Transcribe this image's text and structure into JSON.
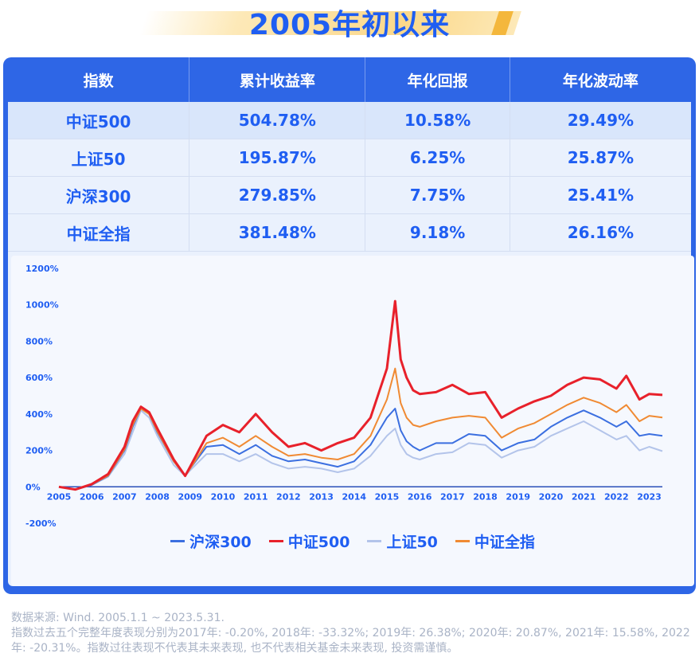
{
  "title": "2005年初以来",
  "table": {
    "headers": [
      "指数",
      "累计收益率",
      "年化回报",
      "年化波动率"
    ],
    "rows": [
      [
        "中证500",
        "504.78%",
        "10.58%",
        "29.49%"
      ],
      [
        "上证50",
        "195.87%",
        "6.25%",
        "25.87%"
      ],
      [
        "沪深300",
        "279.85%",
        "7.75%",
        "25.41%"
      ],
      [
        "中证全指",
        "381.48%",
        "9.18%",
        "26.16%"
      ]
    ]
  },
  "chart_data": {
    "type": "line",
    "x": [
      2005,
      2005.5,
      2006,
      2006.5,
      2007,
      2007.25,
      2007.5,
      2007.75,
      2008,
      2008.5,
      2008.85,
      2009,
      2009.5,
      2010,
      2010.5,
      2011,
      2011.5,
      2012,
      2012.5,
      2013,
      2013.5,
      2014,
      2014.5,
      2015,
      2015.25,
      2015.42,
      2015.6,
      2015.8,
      2016,
      2016.5,
      2017,
      2017.5,
      2018,
      2018.5,
      2019,
      2019.5,
      2020,
      2020.5,
      2021,
      2021.5,
      2022,
      2022.3,
      2022.7,
      2023,
      2023.4
    ],
    "xticks": [
      "2005",
      "2006",
      "2007",
      "2008",
      "2009",
      "2010",
      "2011",
      "2012",
      "2013",
      "2014",
      "2015",
      "2016",
      "2017",
      "2018",
      "2019",
      "2020",
      "2021",
      "2022",
      "2023"
    ],
    "yticks": [
      "1200%",
      "1000%",
      "800%",
      "600%",
      "400%",
      "200%",
      "0%",
      "-200%"
    ],
    "ylim": [
      -200,
      1200
    ],
    "xlim": [
      2005,
      2023.4
    ],
    "series": [
      {
        "name": "沪深300",
        "color": "#3b6fe0",
        "values": [
          0,
          -15,
          10,
          60,
          200,
          330,
          430,
          400,
          300,
          140,
          60,
          100,
          220,
          230,
          180,
          230,
          170,
          140,
          150,
          130,
          110,
          140,
          230,
          380,
          430,
          310,
          250,
          220,
          200,
          240,
          240,
          290,
          280,
          200,
          240,
          260,
          330,
          380,
          420,
          380,
          330,
          360,
          280,
          290,
          280
        ]
      },
      {
        "name": "中证500",
        "color": "#e8212b",
        "values": [
          0,
          -15,
          15,
          70,
          220,
          360,
          440,
          410,
          320,
          150,
          60,
          110,
          280,
          340,
          300,
          400,
          300,
          220,
          240,
          200,
          240,
          270,
          380,
          650,
          1020,
          700,
          600,
          530,
          510,
          520,
          560,
          510,
          520,
          380,
          430,
          470,
          500,
          560,
          600,
          590,
          540,
          610,
          480,
          510,
          505
        ]
      },
      {
        "name": "上证50",
        "color": "#b3c4ea",
        "values": [
          0,
          -15,
          10,
          55,
          180,
          300,
          420,
          380,
          280,
          120,
          60,
          90,
          180,
          180,
          140,
          180,
          130,
          100,
          110,
          100,
          80,
          100,
          170,
          280,
          320,
          230,
          180,
          160,
          150,
          180,
          190,
          240,
          230,
          160,
          200,
          220,
          280,
          320,
          360,
          310,
          260,
          280,
          200,
          220,
          196
        ]
      },
      {
        "name": "中证全指",
        "color": "#f08a33",
        "values": [
          0,
          -15,
          12,
          62,
          205,
          340,
          430,
          400,
          305,
          140,
          60,
          100,
          240,
          270,
          220,
          280,
          220,
          170,
          180,
          160,
          150,
          180,
          280,
          480,
          650,
          460,
          380,
          340,
          330,
          360,
          380,
          390,
          380,
          270,
          320,
          350,
          400,
          450,
          490,
          460,
          410,
          450,
          360,
          390,
          381
        ]
      }
    ]
  },
  "footer": {
    "line1": "数据来源: Wind. 2005.1.1 ~ 2023.5.31.",
    "line2": "指数过去五个完整年度表现分别为2017年: -0.20%, 2018年: -33.32%; 2019年: 26.38%; 2020年: 20.87%, 2021年: 15.58%, 2022年: -20.31%。指数过往表现不代表其未来表现, 也不代表相关基金未来表现, 投资需谨慎。"
  }
}
